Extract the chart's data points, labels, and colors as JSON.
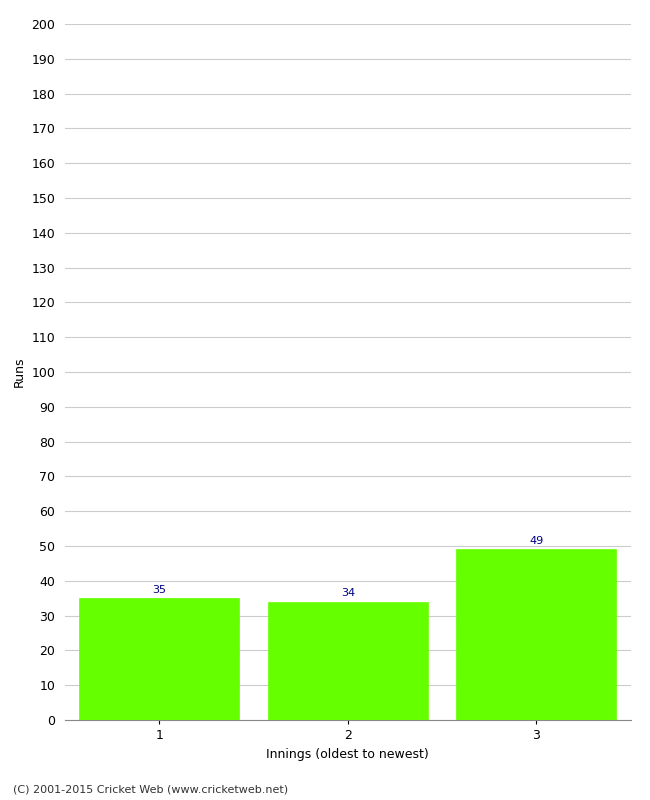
{
  "categories": [
    "1",
    "2",
    "3"
  ],
  "values": [
    35,
    34,
    49
  ],
  "bar_color": "#66ff00",
  "bar_edge_color": "#66ff00",
  "ylabel": "Runs",
  "xlabel": "Innings (oldest to newest)",
  "ylim": [
    0,
    200
  ],
  "yticks": [
    0,
    10,
    20,
    30,
    40,
    50,
    60,
    70,
    80,
    90,
    100,
    110,
    120,
    130,
    140,
    150,
    160,
    170,
    180,
    190,
    200
  ],
  "annotation_color": "#000080",
  "annotation_fontsize": 8,
  "grid_color": "#cccccc",
  "footer": "(C) 2001-2015 Cricket Web (www.cricketweb.net)",
  "background_color": "#ffffff",
  "bar_width": 0.85
}
